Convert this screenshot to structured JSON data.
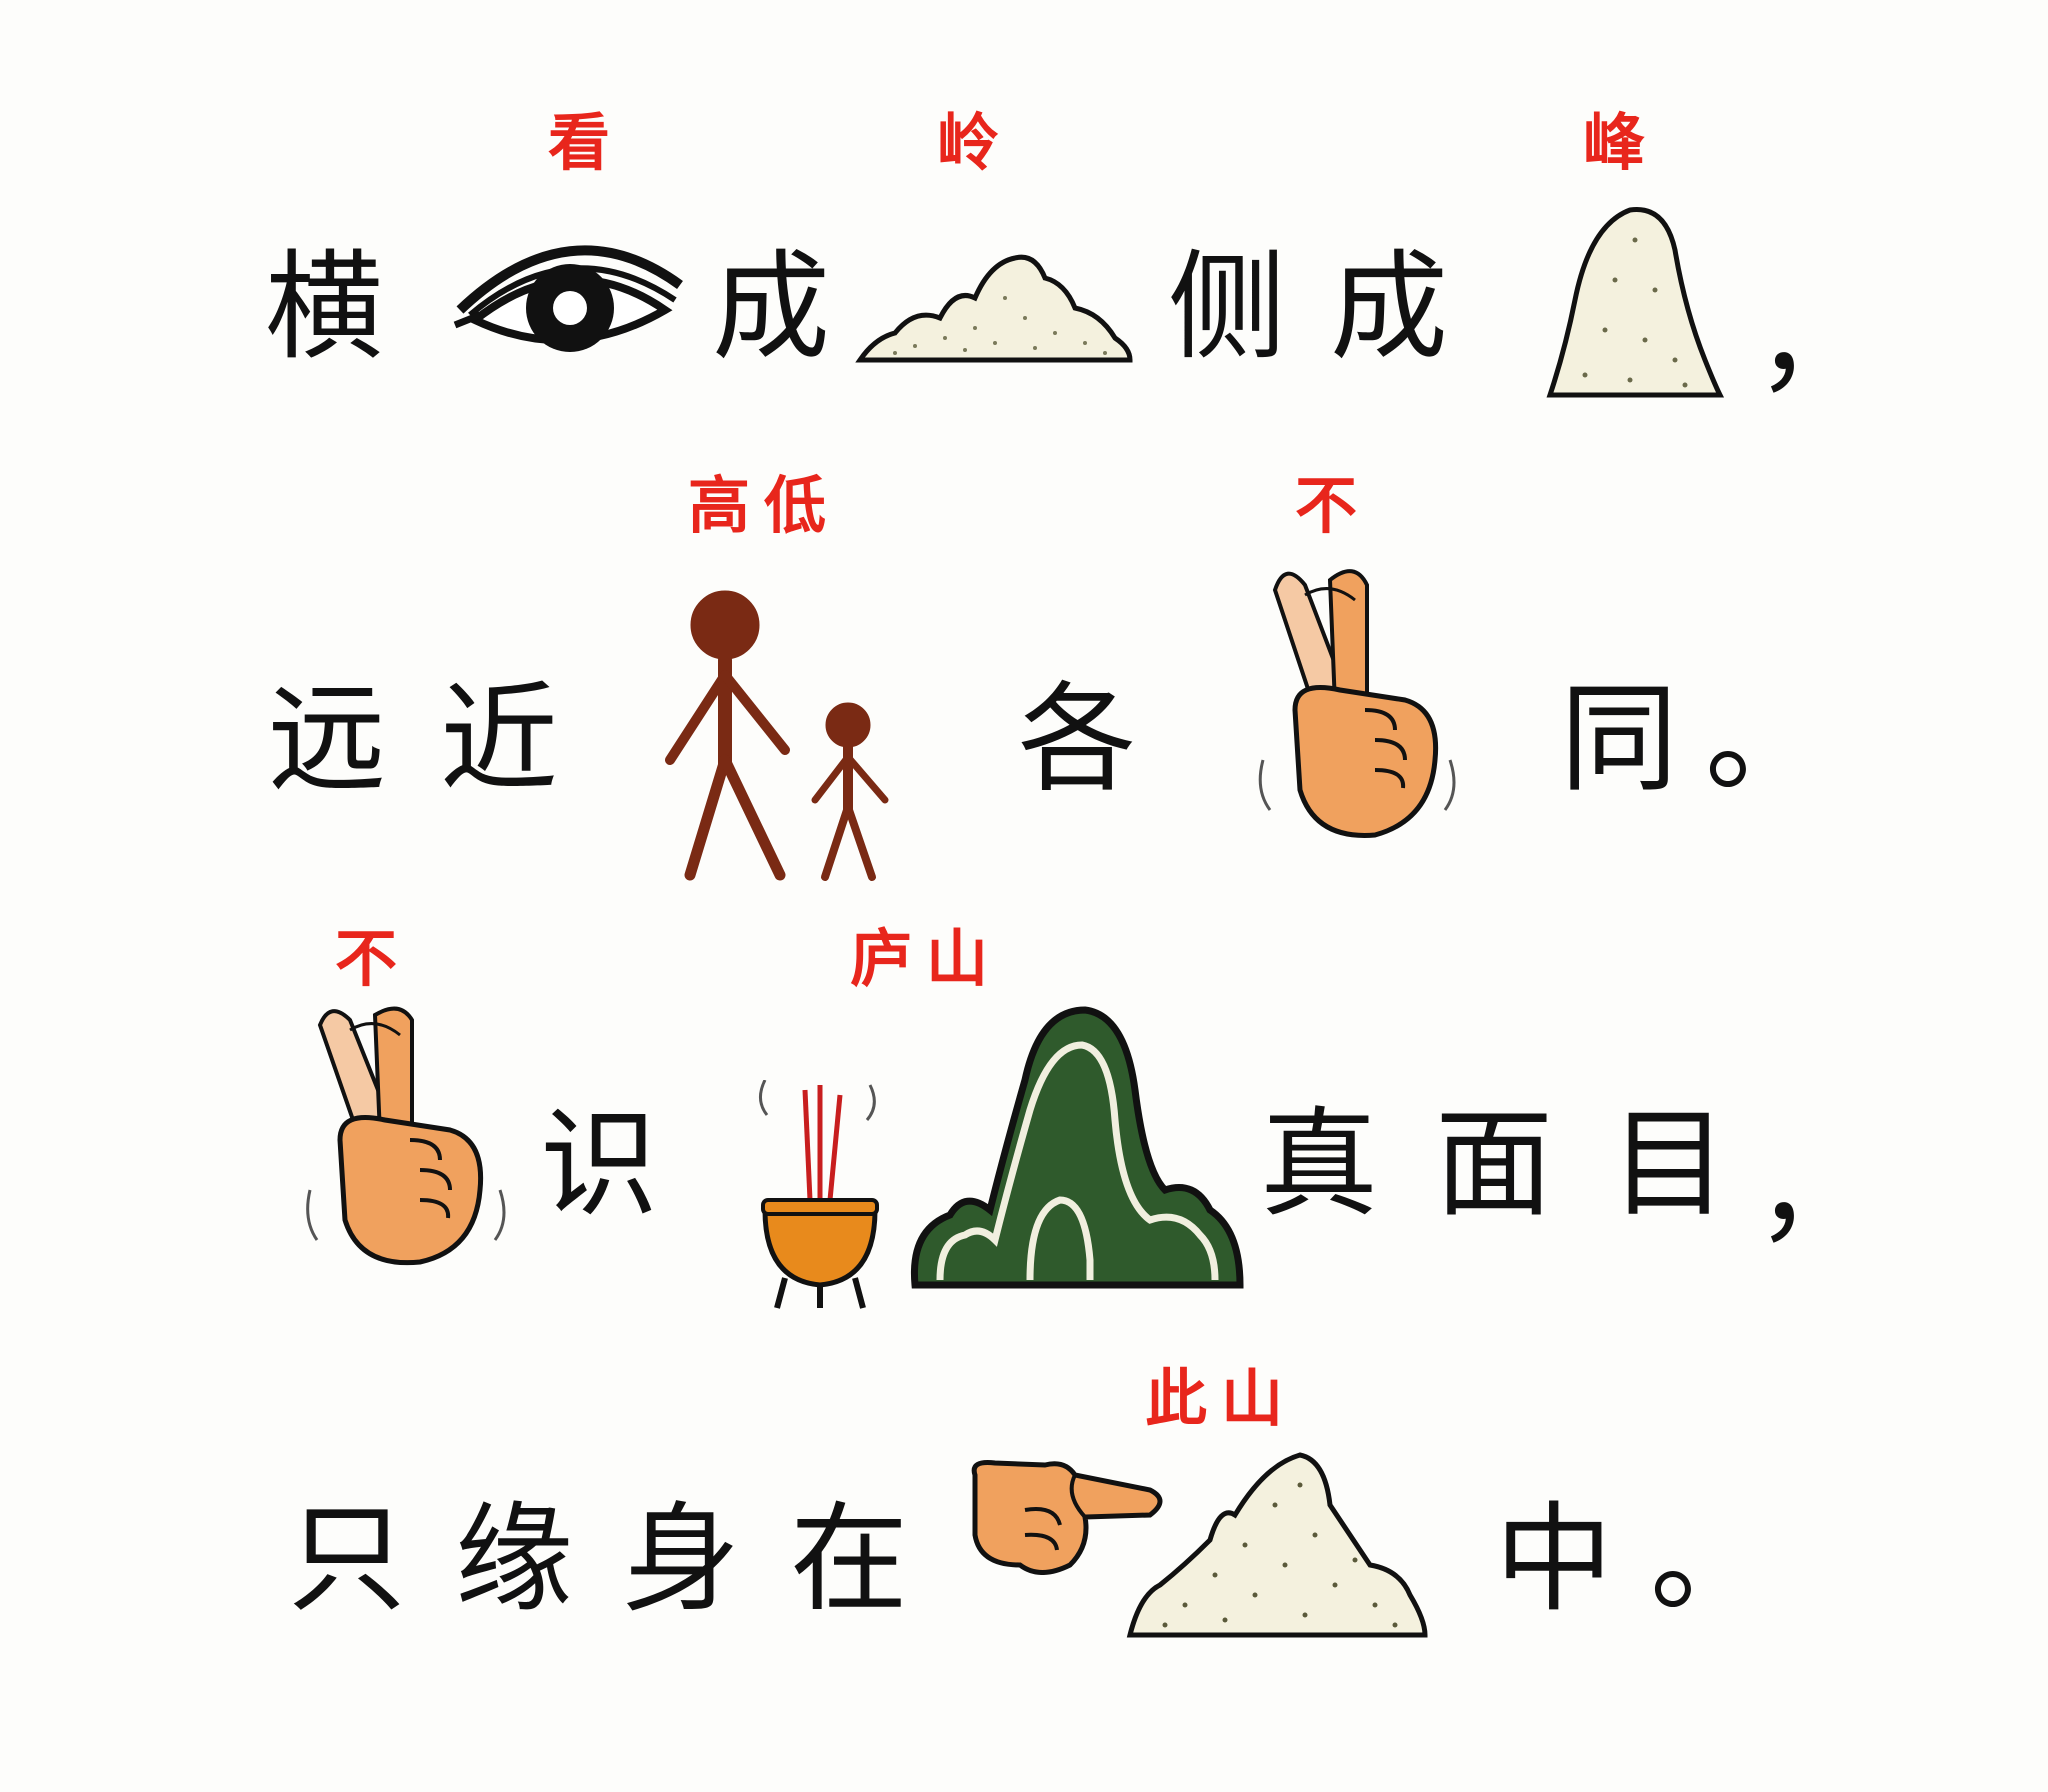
{
  "poem": {
    "line1": {
      "c1": "横",
      "c2": "成",
      "c3": "侧",
      "c4": "成",
      "punct": "，"
    },
    "line2": {
      "c1": "远",
      "c2": "近",
      "c3": "各",
      "c4": "同",
      "punct": "。"
    },
    "line3": {
      "c1": "识",
      "c2": "真",
      "c3": "面",
      "c4": "目",
      "punct": "，"
    },
    "line4": {
      "c1": "只",
      "c2": "缘",
      "c3": "身",
      "c4": "在",
      "c5": "中",
      "punct": "。"
    }
  },
  "annotations": {
    "eye": "看",
    "ridge": "岭",
    "peak": "峰",
    "people": "高低",
    "hand_line2": "不",
    "hand_line3": "不",
    "lushan": "庐山",
    "this_mountain": "此山"
  },
  "icons": {
    "eye": "eye-icon",
    "ridge": "mountain-ridge-icon",
    "peak": "mountain-peak-icon",
    "people": "tall-short-people-icon",
    "hand_no": "waving-hand-no-icon",
    "censer": "incense-burner-icon",
    "lushan": "green-mountain-icon",
    "pointing": "pointing-hand-icon",
    "this_mountain": "dotted-mountain-icon"
  },
  "colors": {
    "text": "#111111",
    "annotation": "#e8261c",
    "skin": "#f0a15e",
    "people": "#7a2a14",
    "mountain_green": "#2f5a2c",
    "censer": "#e88a1c"
  }
}
